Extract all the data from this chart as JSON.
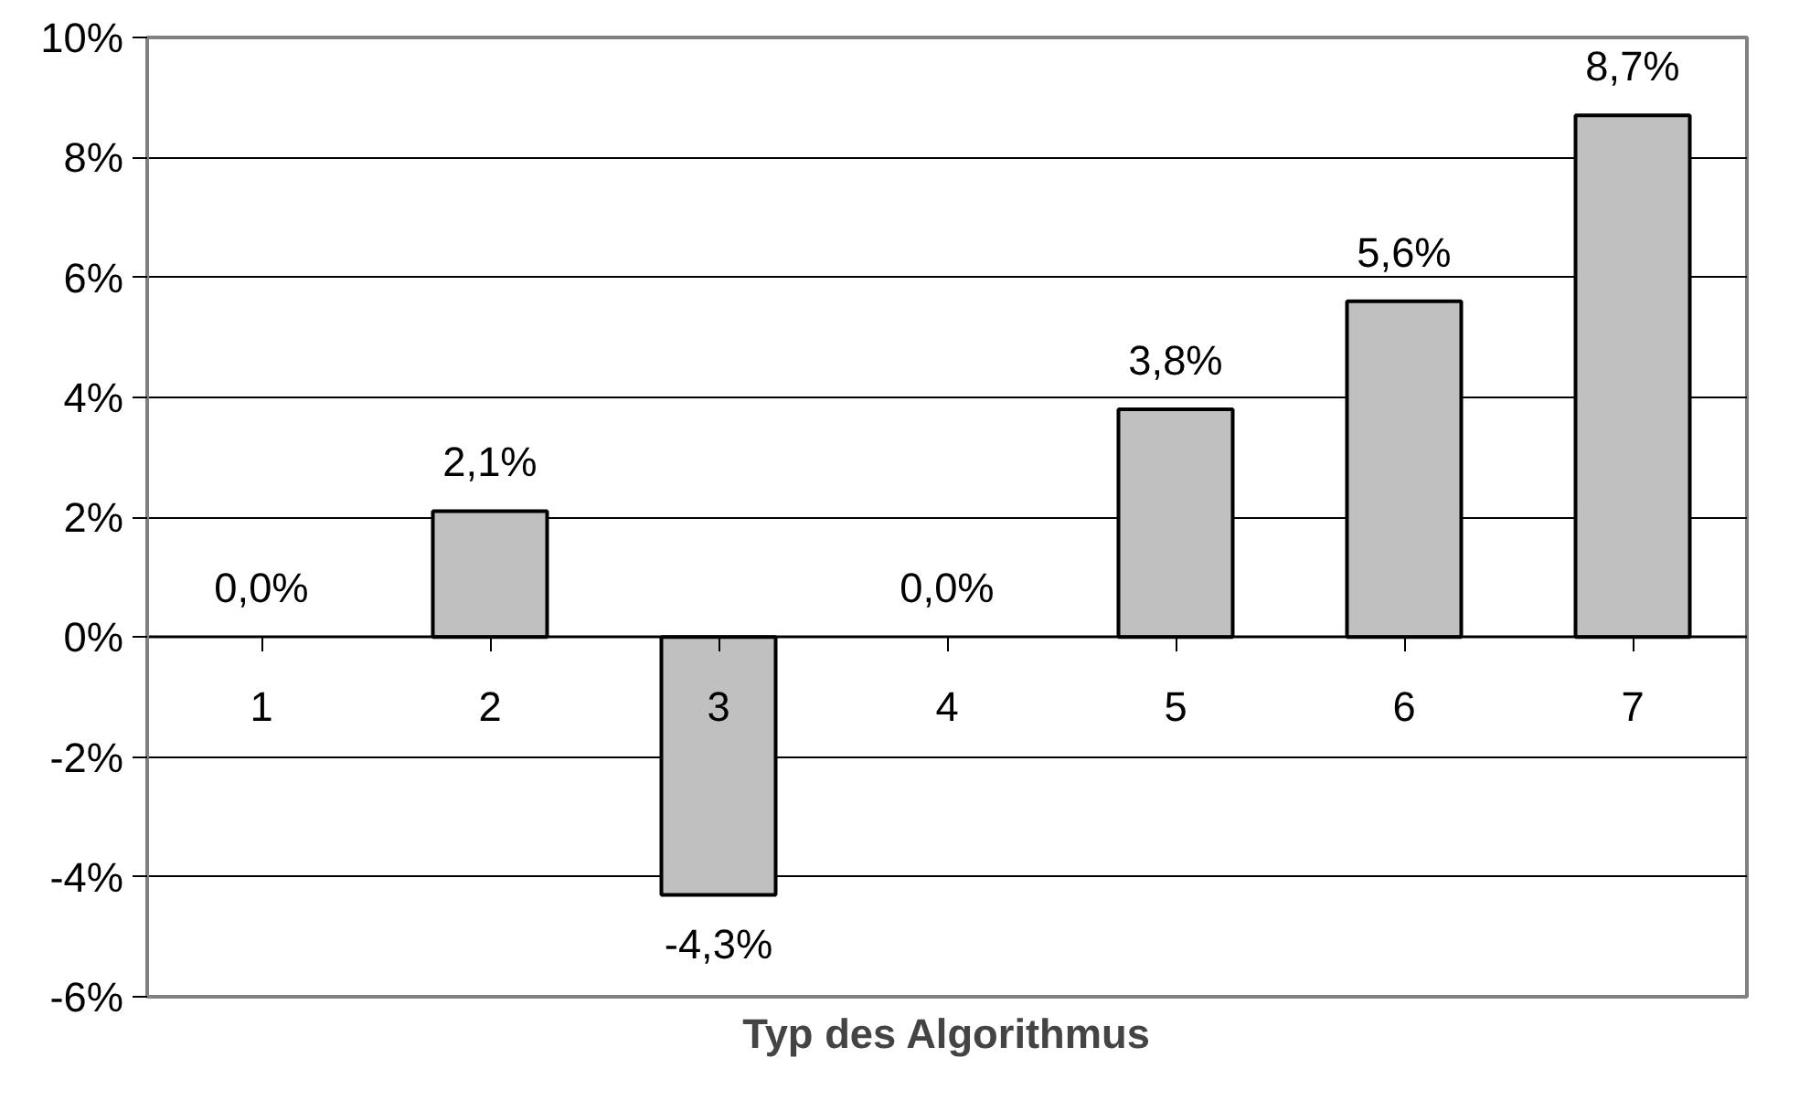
{
  "chart_data": {
    "type": "bar",
    "xlabel": "Typ des Algorithmus",
    "categories": [
      "1",
      "2",
      "3",
      "4",
      "5",
      "6",
      "7"
    ],
    "values": [
      0.0,
      2.1,
      -4.3,
      0.0,
      3.8,
      5.6,
      8.7
    ],
    "value_labels": [
      "0,0%",
      "2,1%",
      "-4,3%",
      "0,0%",
      "3,8%",
      "5,6%",
      "8,7%"
    ],
    "color": "#c0c0c0",
    "ylim": [
      -6,
      10
    ],
    "yticks": [
      {
        "value": -6,
        "label": "-6%"
      },
      {
        "value": -4,
        "label": "-4%"
      },
      {
        "value": -2,
        "label": "-2%"
      },
      {
        "value": 0,
        "label": "0%"
      },
      {
        "value": 2,
        "label": "2%"
      },
      {
        "value": 4,
        "label": "4%"
      },
      {
        "value": 6,
        "label": "6%"
      },
      {
        "value": 8,
        "label": "8%"
      },
      {
        "value": 10,
        "label": "10%"
      }
    ],
    "grid": "y",
    "legend": false
  }
}
